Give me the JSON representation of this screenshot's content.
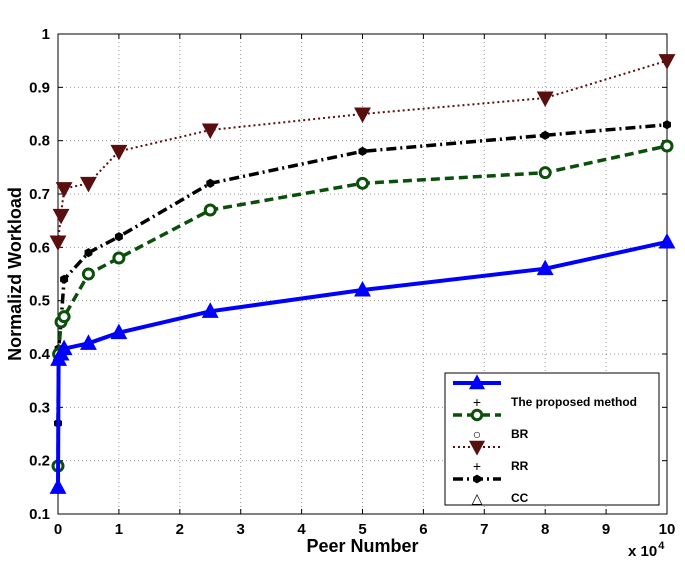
{
  "chart_data": {
    "type": "line",
    "xlabel": "Peer Number",
    "ylabel": "Normalizd Workload",
    "x_multiplier_label": "x 10",
    "x_multiplier_exponent": "4",
    "xlim": [
      0,
      10
    ],
    "ylim": [
      0.1,
      1
    ],
    "xticks": [
      0,
      1,
      2,
      3,
      4,
      5,
      6,
      7,
      8,
      9,
      10
    ],
    "yticks": [
      0.1,
      0.2,
      0.3,
      0.4,
      0.5,
      0.6,
      0.7,
      0.8,
      0.9,
      1
    ],
    "grid": true,
    "legend_position": "bottom-right",
    "legend_entries": [
      "The proposed method",
      "BR",
      "RR",
      "CC"
    ],
    "series": [
      {
        "name": "The proposed method",
        "color": "#0000ff",
        "line": "solid",
        "marker": "triangle-up",
        "x": [
          0,
          0.01,
          0.05,
          0.1,
          0.5,
          1,
          2.5,
          5,
          8,
          10
        ],
        "y": [
          0.15,
          0.39,
          0.4,
          0.41,
          0.42,
          0.44,
          0.48,
          0.52,
          0.56,
          0.61
        ]
      },
      {
        "name": "BR",
        "color": "#0a4f0a",
        "line": "dashed",
        "marker": "circle",
        "x": [
          0,
          0.01,
          0.05,
          0.1,
          0.5,
          1,
          2.5,
          5,
          8,
          10
        ],
        "y": [
          0.19,
          0.4,
          0.46,
          0.47,
          0.55,
          0.58,
          0.67,
          0.72,
          0.74,
          0.79
        ]
      },
      {
        "name": "RR",
        "color": "#5a0f0f",
        "line": "dotted",
        "marker": "triangle-down",
        "x": [
          0,
          0.05,
          0.1,
          0.5,
          1,
          2.5,
          5,
          8,
          10
        ],
        "y": [
          0.61,
          0.66,
          0.71,
          0.72,
          0.78,
          0.82,
          0.85,
          0.88,
          0.95
        ]
      },
      {
        "name": "CC",
        "color": "#000000",
        "line": "dashdot",
        "marker": "hexagon",
        "x": [
          0,
          0.01,
          0.05,
          0.1,
          0.5,
          1,
          2.5,
          5,
          8,
          10
        ],
        "y": [
          0.27,
          0.41,
          0.46,
          0.54,
          0.59,
          0.62,
          0.72,
          0.78,
          0.81,
          0.83
        ]
      }
    ]
  }
}
